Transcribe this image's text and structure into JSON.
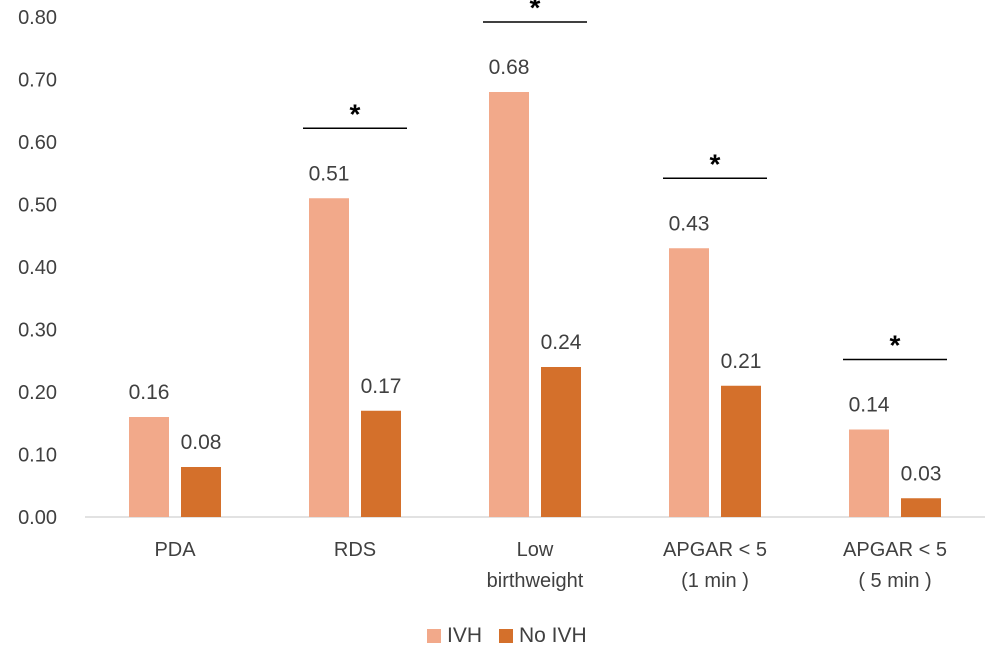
{
  "chart_data": {
    "type": "bar",
    "categories": [
      [
        "PDA"
      ],
      [
        "RDS"
      ],
      [
        "Low",
        "birthweight"
      ],
      [
        "APGAR < 5",
        "(1 min )"
      ],
      [
        "APGAR < 5",
        "( 5 min )"
      ]
    ],
    "series": [
      {
        "name": "IVH",
        "values": [
          0.16,
          0.51,
          0.68,
          0.43,
          0.14
        ],
        "color": "#F2A98A"
      },
      {
        "name": "No IVH",
        "values": [
          0.08,
          0.17,
          0.24,
          0.21,
          0.03
        ],
        "color": "#D4702B"
      }
    ],
    "data_labels": [
      [
        "0.16",
        "0.51",
        "0.68",
        "0.43",
        "0.14"
      ],
      [
        "0.08",
        "0.17",
        "0.24",
        "0.21",
        "0.03"
      ]
    ],
    "significance": [
      false,
      true,
      true,
      true,
      true
    ],
    "significance_marker": "*",
    "yticks": [
      "0.00",
      "0.10",
      "0.20",
      "0.30",
      "0.40",
      "0.50",
      "0.60",
      "0.70",
      "0.80"
    ],
    "ylim": [
      0,
      0.8
    ],
    "legend": [
      "IVH",
      "No IVH"
    ],
    "legend_position": "bottom",
    "grid": false,
    "title": "",
    "xlabel": "",
    "ylabel": ""
  }
}
